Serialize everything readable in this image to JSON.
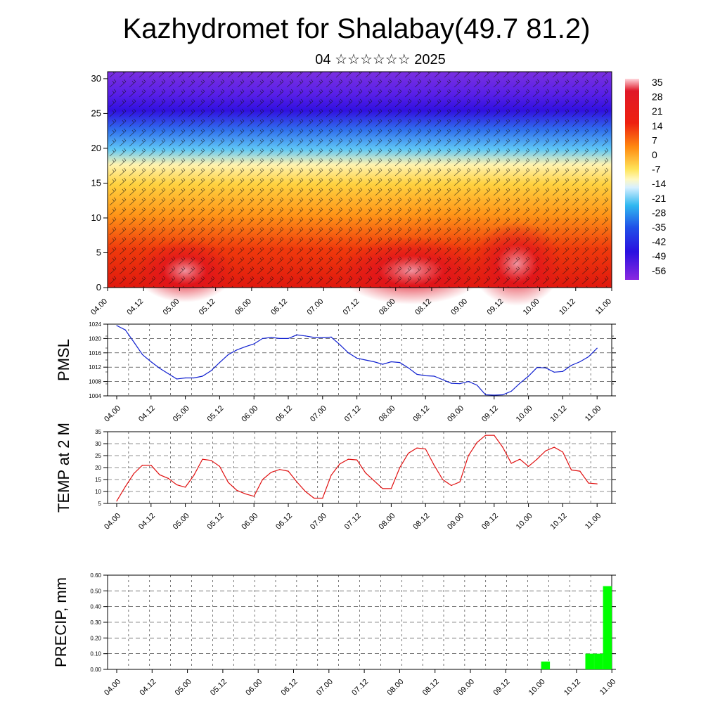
{
  "title": "Kazhydromet for Shalabay(49.7 81.2)",
  "subtitle": "04 ☆☆☆☆☆☆ 2025",
  "time_labels": [
    "04.00",
    "04.12",
    "05.00",
    "05.12",
    "06.00",
    "06.12",
    "07.00",
    "07.12",
    "08.00",
    "08.12",
    "09.00",
    "09.12",
    "10.00",
    "10.12",
    "11.00"
  ],
  "colors": {
    "pmsl_line": "#1020d0",
    "temp_line": "#e01010",
    "precip_bar": "#00ff00",
    "grid": "#222222"
  },
  "chart_data": [
    {
      "type": "heatmap",
      "name": "cross-section",
      "x_unit": "forecast time (DD.HH)",
      "ylim": [
        0,
        31
      ],
      "yticks": [
        0,
        5,
        10,
        15,
        20,
        25,
        30
      ],
      "colorbar_labels": [
        "35",
        "28",
        "21",
        "14",
        "7",
        "0",
        "-7",
        "-14",
        "-21",
        "-28",
        "-35",
        "-42",
        "-49",
        "-56"
      ],
      "colorbar_range": [
        -60,
        38
      ],
      "overlay": "wind barbs"
    },
    {
      "type": "line",
      "name": "PMSL",
      "ylabel": "PMSL",
      "ylim": [
        1004,
        1024
      ],
      "yticks": [
        1004,
        1008,
        1012,
        1016,
        1020,
        1024
      ],
      "x_hours": [
        0,
        3,
        6,
        9,
        12,
        15,
        18,
        21,
        24,
        27,
        30,
        33,
        36,
        39,
        42,
        45,
        48,
        51,
        54,
        57,
        60,
        63,
        66,
        69,
        72,
        75,
        78,
        81,
        84,
        87,
        90,
        93,
        96,
        99,
        102,
        105,
        108,
        111,
        114,
        117,
        120,
        123,
        126,
        129,
        132,
        135,
        138,
        141,
        144,
        147,
        150,
        153,
        156,
        159,
        162,
        165,
        168
      ],
      "values": [
        1023.6,
        1022.4,
        1019.0,
        1015.5,
        1013.5,
        1011.7,
        1010.2,
        1008.7,
        1009.0,
        1009.0,
        1009.5,
        1011.0,
        1013.3,
        1015.5,
        1016.8,
        1017.7,
        1018.5,
        1020.0,
        1020.3,
        1020.0,
        1020.0,
        1021.0,
        1020.7,
        1020.3,
        1020.2,
        1020.4,
        1018.3,
        1016.0,
        1014.5,
        1014.0,
        1013.5,
        1012.8,
        1013.5,
        1013.3,
        1011.8,
        1010.0,
        1009.6,
        1009.5,
        1008.5,
        1007.5,
        1007.4,
        1008.0,
        1007.0,
        1004.3,
        1004.2,
        1004.3,
        1005.3,
        1007.5,
        1009.5,
        1011.9,
        1011.8,
        1010.6,
        1010.8,
        1012.5,
        1013.5,
        1014.9,
        1017.3
      ]
    },
    {
      "type": "line",
      "name": "TEMP at 2 M",
      "ylabel": "TEMP at 2 M",
      "ylim": [
        5,
        35
      ],
      "yticks": [
        5,
        10,
        15,
        20,
        25,
        30,
        35
      ],
      "x_hours": [
        0,
        3,
        6,
        9,
        12,
        15,
        18,
        21,
        24,
        27,
        30,
        33,
        36,
        39,
        42,
        45,
        48,
        51,
        54,
        57,
        60,
        63,
        66,
        69,
        72,
        75,
        78,
        81,
        84,
        87,
        90,
        93,
        96,
        99,
        102,
        105,
        108,
        111,
        114,
        117,
        120,
        123,
        126,
        129,
        132,
        135,
        138,
        141,
        144,
        147,
        150,
        153,
        156,
        159,
        162,
        165,
        168
      ],
      "values": [
        6.0,
        12.0,
        17.5,
        21.0,
        21.0,
        17.0,
        15.5,
        12.8,
        11.8,
        16.8,
        23.5,
        23.0,
        20.5,
        13.8,
        10.5,
        9.0,
        8.0,
        15.0,
        18.0,
        19.2,
        18.5,
        14.0,
        10.0,
        7.2,
        7.2,
        16.8,
        21.5,
        23.5,
        23.2,
        17.8,
        14.5,
        11.2,
        11.2,
        20.0,
        26.0,
        28.2,
        27.8,
        21.0,
        15.0,
        12.5,
        14.0,
        25.0,
        30.5,
        33.5,
        33.5,
        28.5,
        21.8,
        23.5,
        20.5,
        23.5,
        27.0,
        28.5,
        26.5,
        19.0,
        18.5,
        13.5,
        13.2
      ]
    },
    {
      "type": "bar",
      "name": "PRECIP, mm",
      "ylabel": "PRECIP, mm",
      "ylim": [
        0,
        0.6
      ],
      "yticks": [
        "0.00",
        "0.10",
        "0.20",
        "0.30",
        "0.40",
        "0.50",
        "0.60"
      ],
      "bars": [
        {
          "hour": 144,
          "value": 0.05
        },
        {
          "hour": 159,
          "value": 0.1
        },
        {
          "hour": 162,
          "value": 0.1
        },
        {
          "hour": 165,
          "value": 0.53
        }
      ]
    }
  ]
}
